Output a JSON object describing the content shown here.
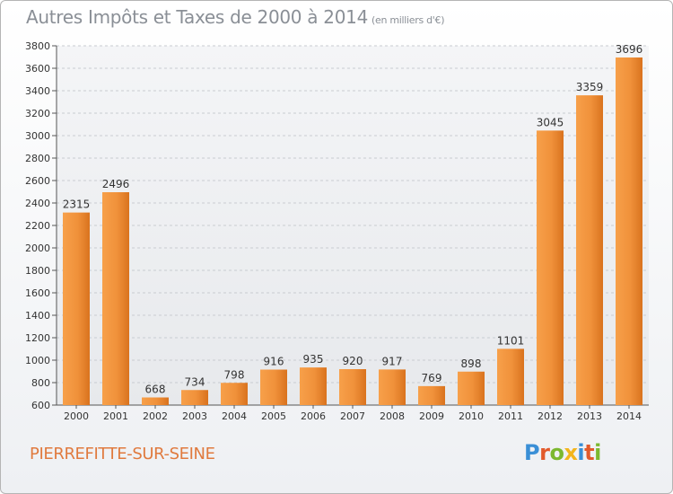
{
  "chart_data": {
    "type": "bar",
    "title": "Autres Impôts et Taxes de 2000 à 2014",
    "subtitle": "(en milliers d'€)",
    "categories": [
      "2000",
      "2001",
      "2002",
      "2003",
      "2004",
      "2005",
      "2006",
      "2007",
      "2008",
      "2009",
      "2010",
      "2011",
      "2012",
      "2013",
      "2014"
    ],
    "values": [
      2315,
      2496,
      668,
      734,
      798,
      916,
      935,
      920,
      917,
      769,
      898,
      1101,
      3045,
      3359,
      3696
    ],
    "ylim": [
      600,
      3800
    ],
    "yticks": [
      600,
      800,
      1000,
      1200,
      1400,
      1600,
      1800,
      2000,
      2200,
      2400,
      2600,
      2800,
      3000,
      3200,
      3400,
      3600,
      3800
    ],
    "grid": true,
    "bar_color": "#f0913a"
  },
  "footer": {
    "location": "PIERREFITTE-SUR-SEINE",
    "logo_letters": [
      "P",
      "r",
      "o",
      "x",
      "i",
      "t",
      "i"
    ],
    "logo_colors": [
      "#3a8fd6",
      "#e25a2b",
      "#7cb82f",
      "#f2b51c",
      "#3a8fd6",
      "#e25a2b",
      "#7cb82f"
    ]
  }
}
